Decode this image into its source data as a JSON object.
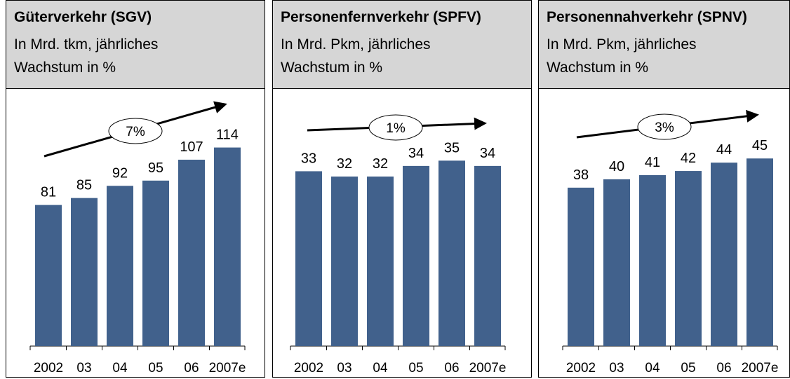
{
  "chart_data": [
    {
      "type": "bar",
      "title": "Güterverkehr (SGV)",
      "subtitle": "In Mrd. tkm, jährliches Wachstum in %",
      "categories": [
        "2002",
        "03",
        "04",
        "05",
        "06",
        "2007e"
      ],
      "values": [
        81,
        85,
        92,
        95,
        107,
        114
      ],
      "color": "#41618c",
      "ylim": [
        0,
        146
      ],
      "annotation": "7%"
    },
    {
      "type": "bar",
      "title": "Personenfernverkehr (SPFV)",
      "subtitle": "In Mrd. Pkm, jährliches Wachstum in %",
      "categories": [
        "2002",
        "03",
        "04",
        "05",
        "06",
        "2007e"
      ],
      "values": [
        33,
        32,
        32,
        34,
        35,
        34
      ],
      "color": "#41618c",
      "ylim": [
        0,
        48
      ],
      "annotation": "1%"
    },
    {
      "type": "bar",
      "title": "Personennahverkehr (SPNV)",
      "subtitle": "In Mrd. Pkm, jährliches Wachstum in %",
      "categories": [
        "2002",
        "03",
        "04",
        "05",
        "06",
        "2007e"
      ],
      "values": [
        38,
        40,
        41,
        42,
        44,
        45
      ],
      "color": "#41618c",
      "ylim": [
        0,
        61
      ],
      "annotation": "3%"
    }
  ]
}
